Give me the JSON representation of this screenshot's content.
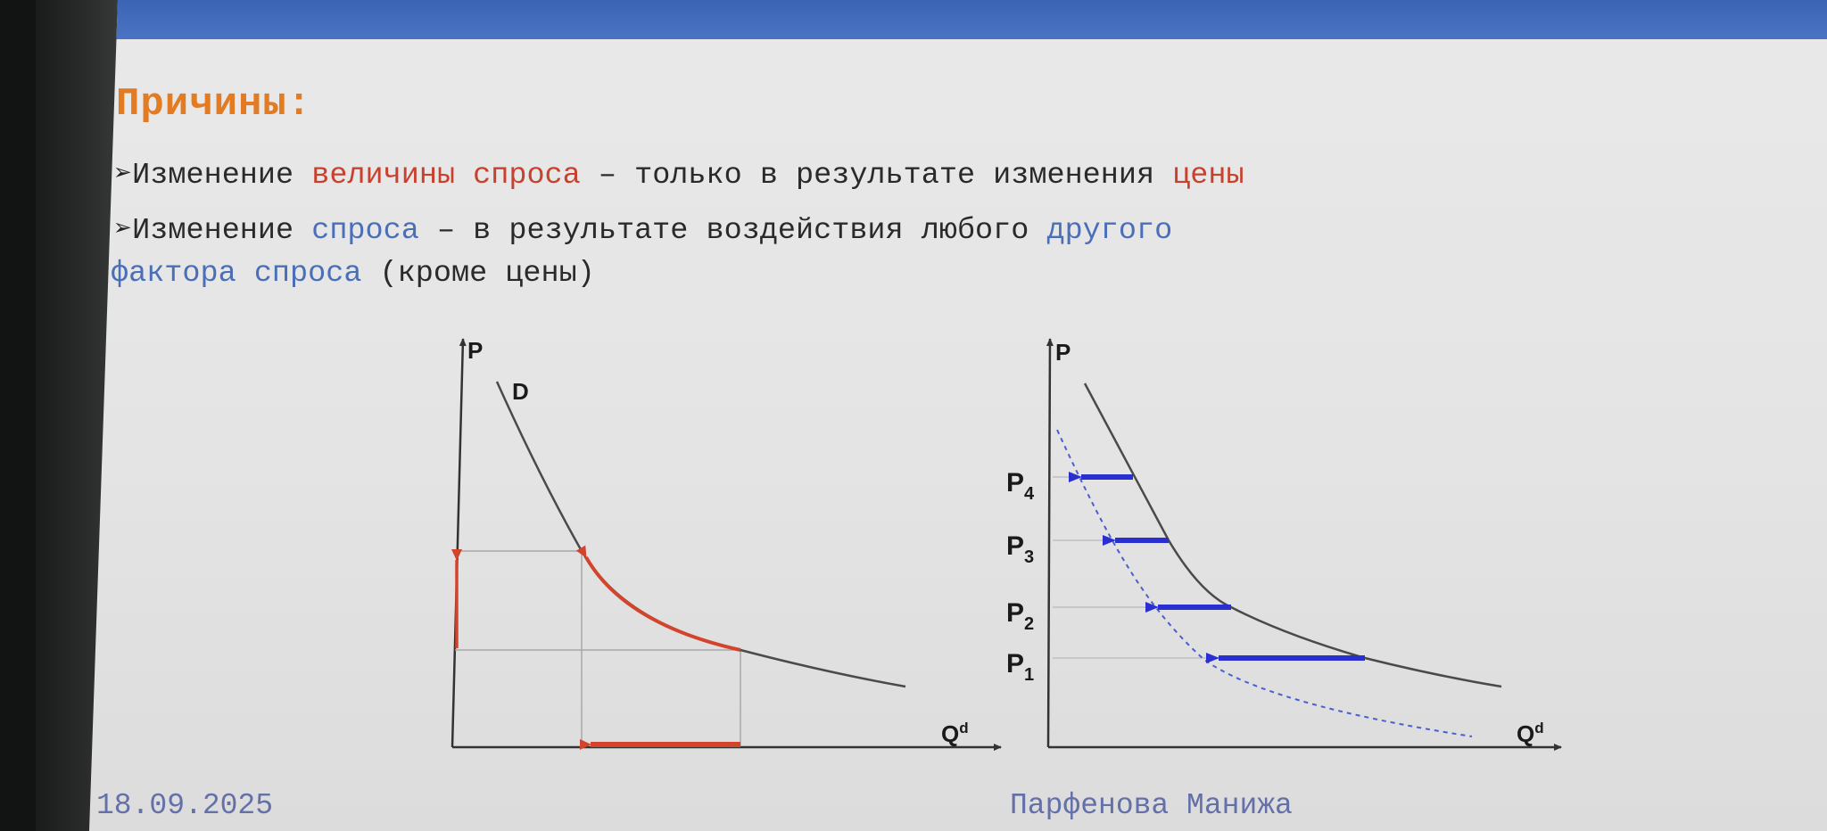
{
  "slide": {
    "title": "Причины:",
    "line1": {
      "bullet": "➢",
      "t1": "Изменение ",
      "t2": "величины спроса",
      "t3": " – только в результате изменения ",
      "t4": "цены"
    },
    "line2": {
      "bullet": "➢",
      "t1": "Изменение ",
      "t2": "спроса",
      "t3": " – в результате воздействия любого ",
      "t4": "другого"
    },
    "line3": {
      "t1": "фактора спроса",
      "t2": "  (кроме цены)"
    },
    "footer_date": "18.09.2025",
    "footer_author": "Парфенова Манижа"
  },
  "graph_left": {
    "y_axis_label": "P",
    "x_axis_label": "Q",
    "x_axis_superscript": "d",
    "curve_label": "D"
  },
  "graph_right": {
    "y_axis_label": "P",
    "x_axis_label": "Q",
    "x_axis_superscript": "d",
    "price_levels": [
      {
        "main": "P",
        "sub": "4"
      },
      {
        "main": "P",
        "sub": "3"
      },
      {
        "main": "P",
        "sub": "2"
      },
      {
        "main": "P",
        "sub": "1"
      }
    ]
  },
  "colors": {
    "accent_title": "#e27b22",
    "highlight_red": "#c8402e",
    "highlight_blue": "#4a6fb8",
    "shift_arrow_blue": "#2a2fd0",
    "header_bar": "#4169b9"
  }
}
